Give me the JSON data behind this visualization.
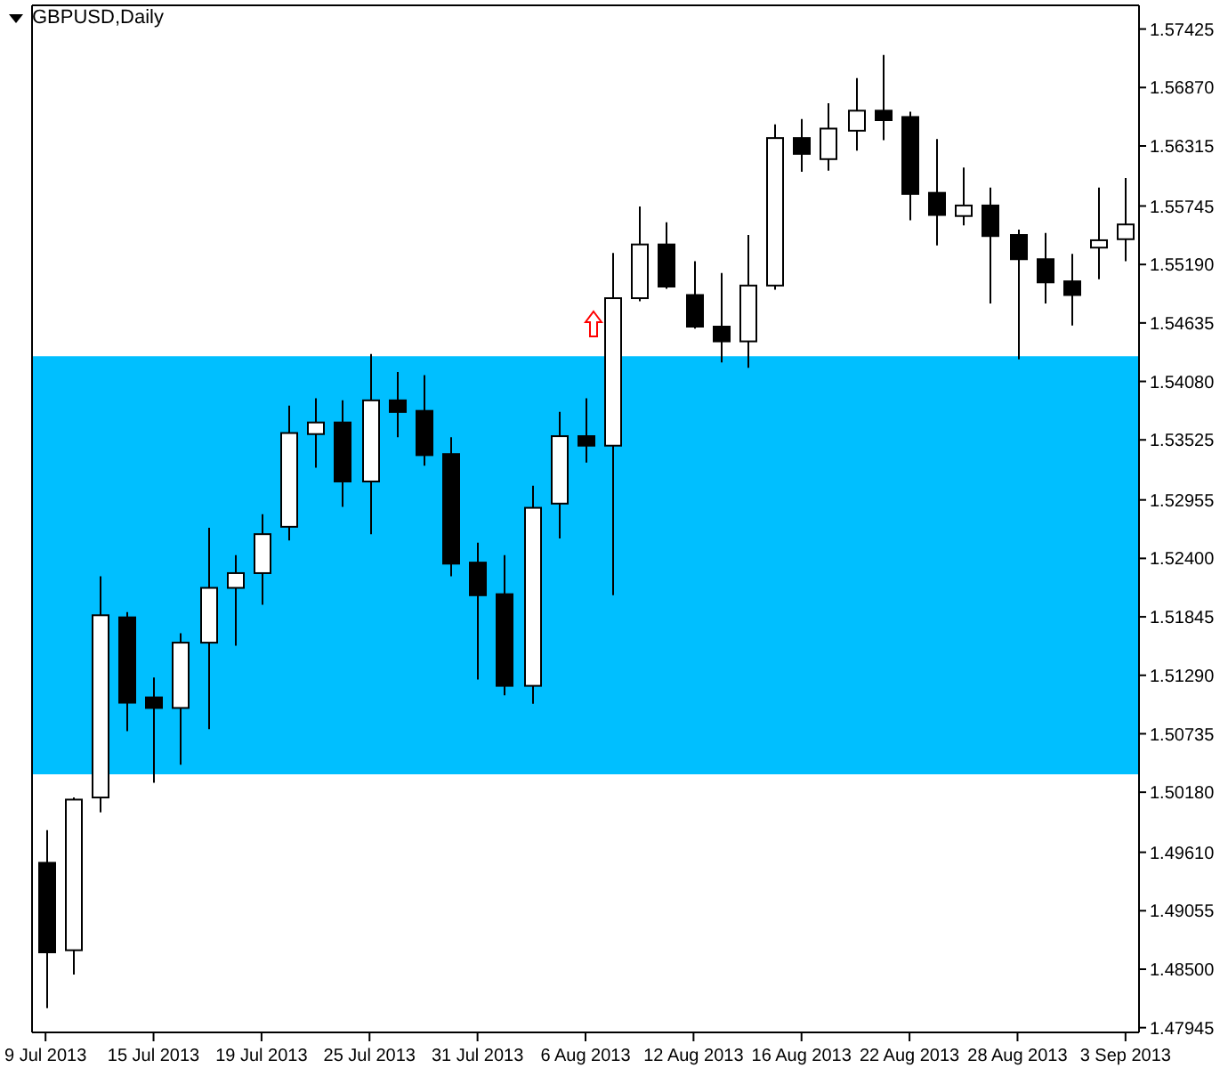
{
  "chart_data": {
    "type": "candlestick",
    "title": "GBPUSD,Daily",
    "color": "#000000",
    "categories": [
      "9 Jul 2013",
      null,
      null,
      null,
      "15 Jul 2013",
      null,
      null,
      null,
      "19 Jul 2013",
      null,
      null,
      null,
      "25 Jul 2013",
      null,
      null,
      null,
      "31 Jul 2013",
      null,
      null,
      null,
      "6 Aug 2013",
      null,
      null,
      null,
      "12 Aug 2013",
      null,
      null,
      null,
      "16 Aug 2013",
      null,
      null,
      null,
      "22 Aug 2013",
      null,
      null,
      null,
      "28 Aug 2013",
      null,
      null,
      null,
      "3 Sep 2013"
    ],
    "ohlc": [
      [
        1.4951,
        1.4982,
        1.4813,
        1.4866
      ],
      [
        1.4868,
        1.5013,
        1.4845,
        1.5011
      ],
      [
        1.5013,
        1.5223,
        1.4999,
        1.5186
      ],
      [
        1.5184,
        1.5189,
        1.5076,
        1.5103
      ],
      [
        1.5108,
        1.5127,
        1.5027,
        1.5098
      ],
      [
        1.5098,
        1.5169,
        1.5044,
        1.516
      ],
      [
        1.516,
        1.5269,
        1.5078,
        1.5212
      ],
      [
        1.5212,
        1.5243,
        1.5157,
        1.5226
      ],
      [
        1.5226,
        1.5282,
        1.5196,
        1.5263
      ],
      [
        1.527,
        1.5385,
        1.5257,
        1.5359
      ],
      [
        1.5358,
        1.5392,
        1.5326,
        1.5369
      ],
      [
        1.5369,
        1.539,
        1.5289,
        1.5313
      ],
      [
        1.5313,
        1.5434,
        1.5263,
        1.539
      ],
      [
        1.539,
        1.5417,
        1.5355,
        1.5379
      ],
      [
        1.538,
        1.5414,
        1.5328,
        1.5338
      ],
      [
        1.5339,
        1.5355,
        1.5223,
        1.5235
      ],
      [
        1.5236,
        1.5255,
        1.5125,
        1.5205
      ],
      [
        1.5206,
        1.5243,
        1.511,
        1.5119
      ],
      [
        1.5119,
        1.5309,
        1.5102,
        1.5288
      ],
      [
        1.5292,
        1.5379,
        1.5259,
        1.5356
      ],
      [
        1.5356,
        1.5392,
        1.5331,
        1.5347
      ],
      [
        1.5347,
        1.553,
        1.5205,
        1.5487
      ],
      [
        1.5487,
        1.5574,
        1.5484,
        1.5538
      ],
      [
        1.5538,
        1.5559,
        1.5496,
        1.5498
      ],
      [
        1.549,
        1.5522,
        1.5458,
        1.546
      ],
      [
        1.546,
        1.5511,
        1.5426,
        1.5446
      ],
      [
        1.5446,
        1.5547,
        1.5421,
        1.5499
      ],
      [
        1.5499,
        1.5652,
        1.5495,
        1.5639
      ],
      [
        1.5639,
        1.5657,
        1.5607,
        1.5624
      ],
      [
        1.5619,
        1.5672,
        1.5608,
        1.5648
      ],
      [
        1.5646,
        1.5696,
        1.5627,
        1.5665
      ],
      [
        1.5665,
        1.5718,
        1.5637,
        1.5656
      ],
      [
        1.5659,
        1.5664,
        1.5561,
        1.5586
      ],
      [
        1.5587,
        1.5638,
        1.5537,
        1.5566
      ],
      [
        1.5565,
        1.5611,
        1.5556,
        1.5575
      ],
      [
        1.5575,
        1.5592,
        1.5482,
        1.5546
      ],
      [
        1.5547,
        1.5552,
        1.5429,
        1.5524
      ],
      [
        1.5524,
        1.5549,
        1.5482,
        1.5502
      ],
      [
        1.5503,
        1.5529,
        1.5461,
        1.549
      ],
      [
        1.5535,
        1.5592,
        1.5505,
        1.5542
      ],
      [
        1.5543,
        1.5601,
        1.5522,
        1.5557
      ]
    ],
    "ylim": [
      1.479,
      1.5765
    ],
    "yticks": [
      1.57425,
      {
        "value": 1.5687,
        "label": "1.56870"
      },
      1.56315,
      1.55745,
      {
        "value": 1.5519,
        "label": "1.55190"
      },
      1.54635,
      {
        "value": 1.5408,
        "label": "1.54080"
      },
      1.53525,
      1.52955,
      {
        "value": 1.524,
        "label": "1.52400"
      },
      1.51845,
      {
        "value": 1.5129,
        "label": "1.51290"
      },
      1.50735,
      {
        "value": 1.5018,
        "label": "1.50180"
      },
      {
        "value": 1.4961,
        "label": "1.49610"
      },
      1.49055,
      {
        "value": 1.485,
        "label": "1.48500"
      },
      1.47945
    ],
    "bands": [
      {
        "axis": "y",
        "from": 1.5035,
        "to": 1.5432,
        "color": "#00bfff"
      }
    ]
  }
}
